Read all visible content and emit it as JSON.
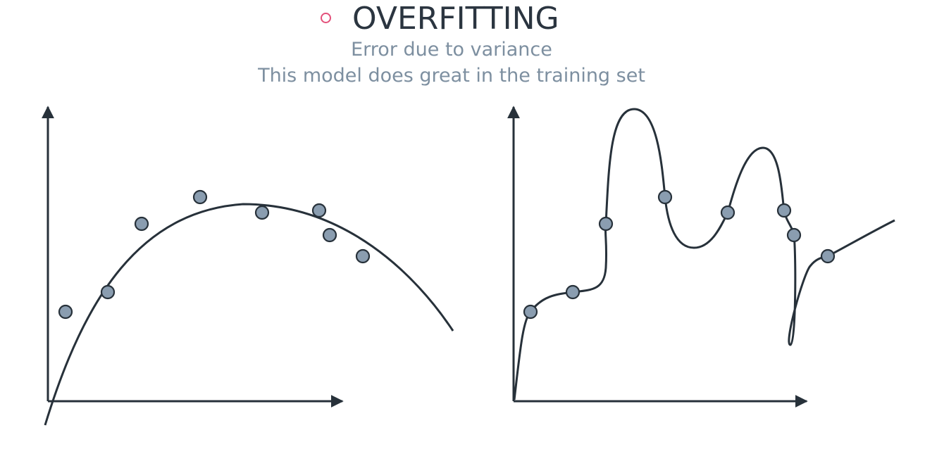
{
  "header": {
    "title": "OVERFITTING",
    "subtitle_line1": "Error due to variance",
    "subtitle_line2": "This model does great in the training set",
    "bullet_icon": "circle-bullet-icon"
  },
  "colors": {
    "title": "#2b3540",
    "subtitle": "#7d8fa0",
    "bullet": "#e3507a",
    "axis": "#27313a",
    "point_fill": "#8a9db0"
  }
}
